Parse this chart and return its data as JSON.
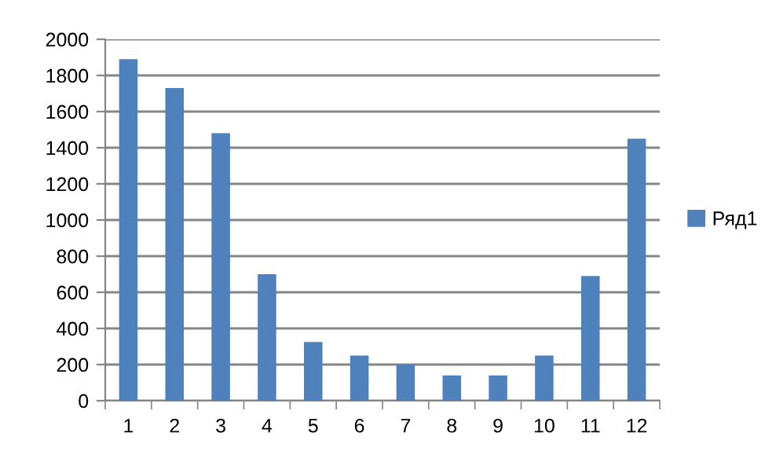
{
  "chart_data": {
    "type": "bar",
    "categories": [
      "1",
      "2",
      "3",
      "4",
      "5",
      "6",
      "7",
      "8",
      "9",
      "10",
      "11",
      "12"
    ],
    "series": [
      {
        "name": "Ряд1",
        "color": "#4f81bd",
        "values": [
          1890,
          1730,
          1480,
          700,
          325,
          250,
          200,
          140,
          140,
          250,
          690,
          1450
        ]
      }
    ],
    "ylim": [
      0,
      2000
    ],
    "yticks": [
      0,
      200,
      400,
      600,
      800,
      1000,
      1200,
      1400,
      1600,
      1800,
      2000
    ],
    "grid": "y",
    "legend": "right"
  }
}
